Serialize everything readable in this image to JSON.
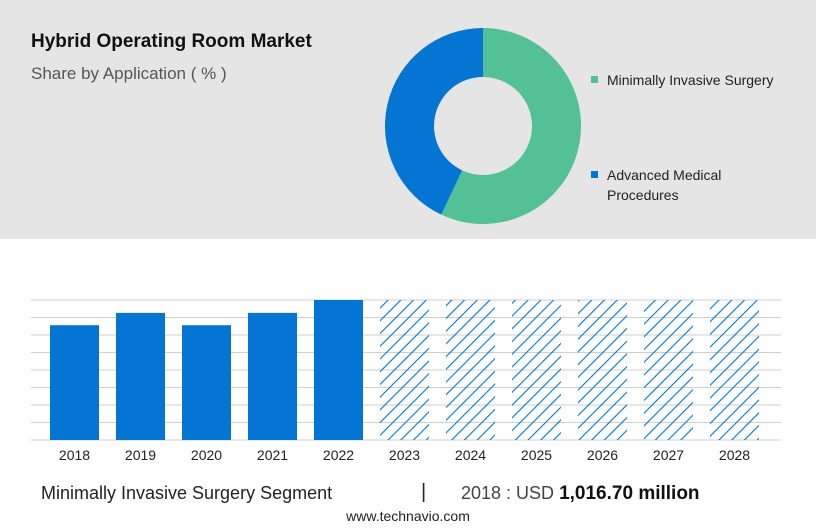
{
  "header": {
    "title": "Hybrid Operating Room Market",
    "subtitle": "Share by Application ( % )"
  },
  "footer": {
    "segment_label": "Minimally Invasive Surgery Segment",
    "divider": "|",
    "year_prefix": "2018 : USD",
    "value_text": "1,016.70 million",
    "source": "www.technavio.com"
  },
  "colors": {
    "teal": "#53c095",
    "blue": "#0575d4",
    "panel": "#e5e5e5",
    "grid": "#cfcfcf"
  },
  "chart_data": [
    {
      "type": "pie",
      "donut": true,
      "title": "Share by Application ( % )",
      "slices": [
        {
          "label": "Minimally Invasive Surgery",
          "value": 57,
          "color": "#53c095"
        },
        {
          "label": "Advanced Medical Procedures",
          "value": 43,
          "color": "#0575d4"
        }
      ],
      "legend_position": "right"
    },
    {
      "type": "bar",
      "categories": [
        "2018",
        "2019",
        "2020",
        "2021",
        "2022",
        "2023",
        "2024",
        "2025",
        "2026",
        "2027",
        "2028"
      ],
      "values": [
        1016.7,
        1126,
        1016.7,
        1126,
        1240,
        1240,
        1240,
        1240,
        1240,
        1240,
        1240
      ],
      "forecast_from": "2023",
      "ylim": [
        0,
        1240
      ],
      "grid": true,
      "color": "#0575d4"
    }
  ]
}
